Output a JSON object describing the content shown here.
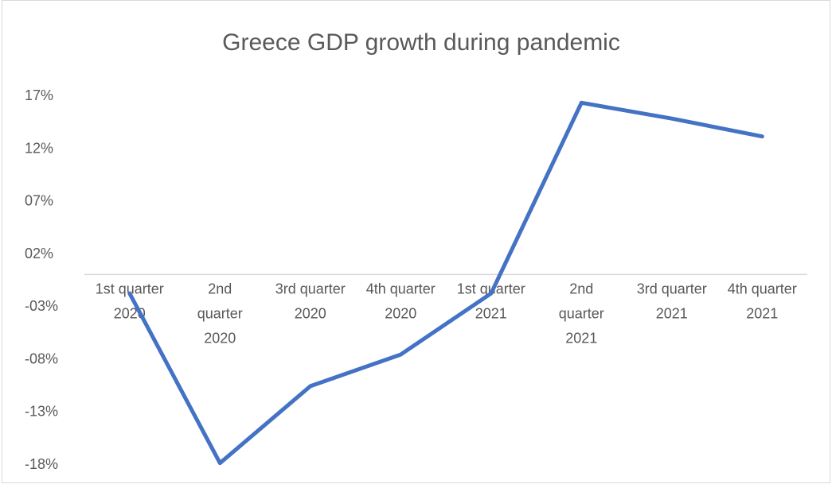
{
  "chart_data": {
    "type": "line",
    "title": "Greece GDP growth during pandemic",
    "xlabel": "",
    "ylabel": "",
    "categories": [
      [
        "1st quarter",
        "2020"
      ],
      [
        "2nd",
        "quarter",
        "2020"
      ],
      [
        "3rd quarter",
        "2020"
      ],
      [
        "4th quarter",
        "2020"
      ],
      [
        "1st quarter",
        "2021"
      ],
      [
        "2nd",
        "quarter",
        "2021"
      ],
      [
        "3rd quarter",
        "2021"
      ],
      [
        "4th quarter",
        "2021"
      ]
    ],
    "series": [
      {
        "values": [
          -1.8,
          -17.9,
          -10.6,
          -7.6,
          -1.8,
          16.3,
          14.8,
          13.1
        ],
        "color": "#4472c4"
      }
    ],
    "y_ticks": [
      "17%",
      "12%",
      "07%",
      "02%",
      "-03%",
      "-08%",
      "-13%",
      "-18%"
    ],
    "y_tick_values": [
      17,
      12,
      7,
      2,
      -3,
      -8,
      -13,
      -18
    ],
    "ylim": [
      -18.5,
      17
    ],
    "grid": false,
    "legend": "none"
  }
}
